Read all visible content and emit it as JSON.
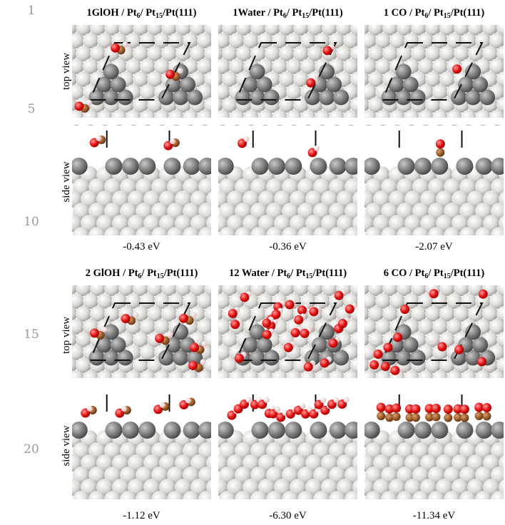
{
  "line_numbers": [
    "1",
    "5",
    "10",
    "15",
    "20"
  ],
  "row_labels": {
    "top": "top view",
    "side": "side view"
  },
  "panels": [
    {
      "title": [
        "1GlOH / Pt",
        "6",
        "/ Pt",
        "15",
        "/Pt(111)"
      ],
      "energy": "-0.43 eV"
    },
    {
      "title": [
        "1Water / Pt",
        "6",
        "/ Pt",
        "15",
        "/Pt(111)"
      ],
      "energy": "-0.36 eV"
    },
    {
      "title": [
        "1 CO / Pt",
        "6",
        "/ Pt",
        "15",
        "/Pt(111)"
      ],
      "energy": "-2.07 eV"
    },
    {
      "title": [
        "2 GlOH / Pt",
        "6",
        "/ Pt",
        "15",
        "/Pt(111)"
      ],
      "energy": "-1.12 eV"
    },
    {
      "title": [
        "12 Water / Pt",
        "6",
        "/ Pt",
        "15",
        "/Pt(111)"
      ],
      "energy": "-6.30 eV"
    },
    {
      "title": [
        "6 CO / Pt",
        "6",
        "/ Pt",
        "15",
        "/Pt(111)"
      ],
      "energy": "-11.34 eV"
    }
  ]
}
